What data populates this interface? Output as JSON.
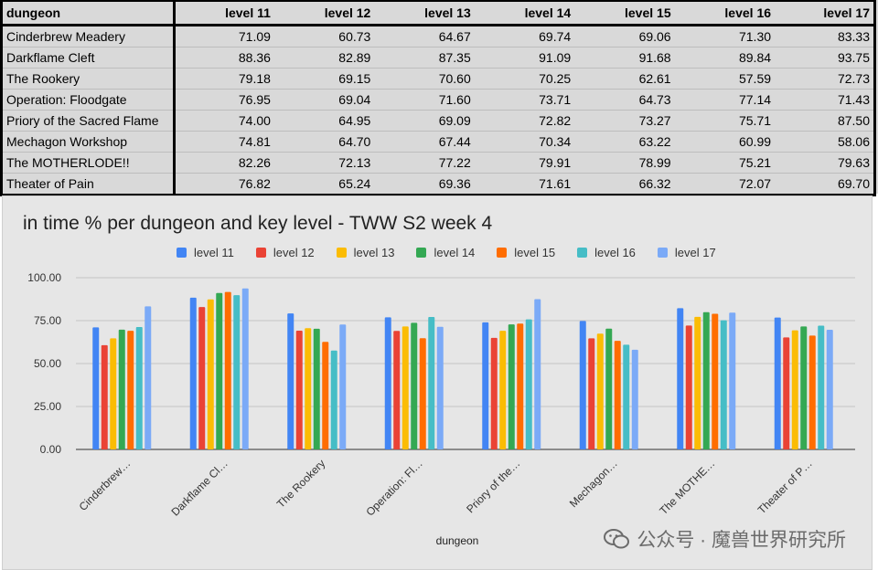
{
  "table": {
    "headers": [
      "dungeon",
      "level 11",
      "level 12",
      "level 13",
      "level 14",
      "level 15",
      "level 16",
      "level 17"
    ],
    "rows": [
      [
        "Cinderbrew Meadery",
        "71.09",
        "60.73",
        "64.67",
        "69.74",
        "69.06",
        "71.30",
        "83.33"
      ],
      [
        "Darkflame Cleft",
        "88.36",
        "82.89",
        "87.35",
        "91.09",
        "91.68",
        "89.84",
        "93.75"
      ],
      [
        "The Rookery",
        "79.18",
        "69.15",
        "70.60",
        "70.25",
        "62.61",
        "57.59",
        "72.73"
      ],
      [
        "Operation: Floodgate",
        "76.95",
        "69.04",
        "71.60",
        "73.71",
        "64.73",
        "77.14",
        "71.43"
      ],
      [
        "Priory of the Sacred Flame",
        "74.00",
        "64.95",
        "69.09",
        "72.82",
        "73.27",
        "75.71",
        "87.50"
      ],
      [
        "Mechagon Workshop",
        "74.81",
        "64.70",
        "67.44",
        "70.34",
        "63.22",
        "60.99",
        "58.06"
      ],
      [
        "The MOTHERLODE!!",
        "82.26",
        "72.13",
        "77.22",
        "79.91",
        "78.99",
        "75.21",
        "79.63"
      ],
      [
        "Theater of Pain",
        "76.82",
        "65.24",
        "69.36",
        "71.61",
        "66.32",
        "72.07",
        "69.70"
      ]
    ]
  },
  "chart_data": {
    "type": "bar",
    "title": "in time % per dungeon and key level - TWW S2 week 4",
    "xlabel": "dungeon",
    "ylabel": "",
    "ylim": [
      0,
      100
    ],
    "yticks": [
      "0.00",
      "25.00",
      "50.00",
      "75.00",
      "100.00"
    ],
    "grid": true,
    "legend_position": "top",
    "categories": [
      "Cinderbrew…",
      "Darkflame Cl…",
      "The Rookery",
      "Operation: Fl…",
      "Priory of the…",
      "Mechagon…",
      "The MOTHE…",
      "Theater of P…"
    ],
    "series": [
      {
        "name": "level 11",
        "color": "#4285f4",
        "values": [
          71.09,
          88.36,
          79.18,
          76.95,
          74.0,
          74.81,
          82.26,
          76.82
        ]
      },
      {
        "name": "level 12",
        "color": "#ea4335",
        "values": [
          60.73,
          82.89,
          69.15,
          69.04,
          64.95,
          64.7,
          72.13,
          65.24
        ]
      },
      {
        "name": "level 13",
        "color": "#fbbc04",
        "values": [
          64.67,
          87.35,
          70.6,
          71.6,
          69.09,
          67.44,
          77.22,
          69.36
        ]
      },
      {
        "name": "level 14",
        "color": "#34a853",
        "values": [
          69.74,
          91.09,
          70.25,
          73.71,
          72.82,
          70.34,
          79.91,
          71.61
        ]
      },
      {
        "name": "level 15",
        "color": "#ff6d01",
        "values": [
          69.06,
          91.68,
          62.61,
          64.73,
          73.27,
          63.22,
          78.99,
          66.32
        ]
      },
      {
        "name": "level 16",
        "color": "#46bdc6",
        "values": [
          71.3,
          89.84,
          57.59,
          77.14,
          75.71,
          60.99,
          75.21,
          72.07
        ]
      },
      {
        "name": "level 17",
        "color": "#7baaf7",
        "values": [
          83.33,
          93.75,
          72.73,
          71.43,
          87.5,
          58.06,
          79.63,
          69.7
        ]
      }
    ]
  },
  "watermark": {
    "text": "公众号 · 魔兽世界研究所",
    "icon": "wechat-icon"
  }
}
